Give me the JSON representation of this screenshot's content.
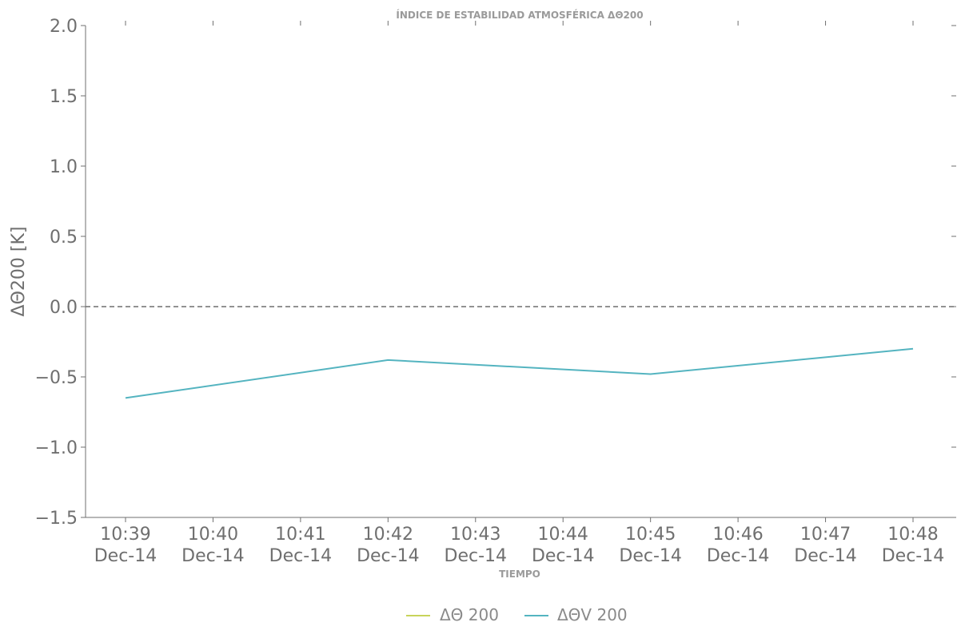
{
  "chart_data": {
    "type": "line",
    "title": "ÍNDICE DE ESTABILIDAD ATMOSFÉRICA ΔΘ200",
    "xlabel": "TIEMPO",
    "ylabel": "ΔΘ200 [K]",
    "ylim": [
      -1.5,
      2.0
    ],
    "yticks": [
      "2.0",
      "1.5",
      "1.0",
      "0.5",
      "0.0",
      "−0.5",
      "−1.0",
      "−1.5"
    ],
    "ytick_values": [
      2.0,
      1.5,
      1.0,
      0.5,
      0.0,
      -0.5,
      -1.0,
      -1.5
    ],
    "x": [
      "10:39 Dec-14",
      "10:40 Dec-14",
      "10:41 Dec-14",
      "10:42 Dec-14",
      "10:43 Dec-14",
      "10:44 Dec-14",
      "10:45 Dec-14",
      "10:46 Dec-14",
      "10:47 Dec-14",
      "10:48 Dec-14"
    ],
    "xtick_time": [
      "10:39",
      "10:40",
      "10:41",
      "10:42",
      "10:43",
      "10:44",
      "10:45",
      "10:46",
      "10:47",
      "10:48"
    ],
    "xtick_date": [
      "Dec-14",
      "Dec-14",
      "Dec-14",
      "Dec-14",
      "Dec-14",
      "Dec-14",
      "Dec-14",
      "Dec-14",
      "Dec-14",
      "Dec-14"
    ],
    "series": [
      {
        "name": "ΔΘ 200",
        "color": "#c8d45a",
        "points": []
      },
      {
        "name": "ΔΘV 200",
        "color": "#54b4c0",
        "points": [
          [
            "10:39 Dec-14",
            -0.65
          ],
          [
            "10:42 Dec-14",
            -0.38
          ],
          [
            "10:45 Dec-14",
            -0.48
          ],
          [
            "10:48 Dec-14",
            -0.3
          ]
        ]
      }
    ],
    "reference_line": {
      "y": 0.0,
      "style": "dashed",
      "color": "#6f6f6f"
    },
    "grid": false,
    "legend_placement": "bottom-center"
  }
}
